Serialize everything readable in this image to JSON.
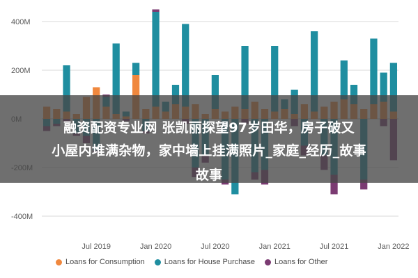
{
  "chart_data": {
    "type": "bar",
    "stacked": true,
    "y_ticks": [
      "400M",
      "200M",
      "0M",
      "-200M",
      "-400M"
    ],
    "y_tick_values": [
      400,
      200,
      0,
      -200,
      -400
    ],
    "ylim": [
      -460,
      460
    ],
    "x_ticks": [
      "Jul 2019",
      "Jan 2020",
      "Jul 2020",
      "Jan 2021",
      "Jul 2021",
      "Jan 2022"
    ],
    "x_tick_index": [
      5,
      11,
      17,
      23,
      29,
      35
    ],
    "grid": true,
    "legend_position": "bottom-left",
    "series": [
      {
        "name": "Loans for Consumption",
        "color": "#f0883e",
        "values": [
          50,
          40,
          30,
          20,
          90,
          130,
          50,
          20,
          10,
          180,
          40,
          50,
          30,
          60,
          50,
          60,
          20,
          40,
          30,
          50,
          40,
          70,
          40,
          30,
          40,
          20,
          60,
          30,
          50,
          70,
          80,
          60,
          40,
          60,
          70,
          30
        ]
      },
      {
        "name": "Loans for House Purchase",
        "color": "#1f8ea0",
        "values": [
          -30,
          -20,
          190,
          -60,
          -70,
          -130,
          40,
          290,
          20,
          50,
          -50,
          390,
          40,
          80,
          340,
          -200,
          -150,
          140,
          -250,
          -310,
          260,
          -220,
          -210,
          270,
          40,
          100,
          -110,
          330,
          -150,
          -230,
          160,
          80,
          -250,
          270,
          120,
          200
        ]
      },
      {
        "name": "Loans for Other",
        "color": "#7b3b72",
        "values": [
          -20,
          -10,
          -10,
          -10,
          -30,
          -10,
          10,
          0,
          -10,
          0,
          -10,
          10,
          0,
          0,
          -20,
          -40,
          -30,
          0,
          -20,
          0,
          -20,
          -30,
          -60,
          0,
          0,
          -30,
          -40,
          0,
          -60,
          -80,
          0,
          0,
          -40,
          0,
          -30,
          -170
        ]
      }
    ]
  },
  "overlay": {
    "line1": "融资配资专业网 张凯丽探望97岁田华，房子破又",
    "line2": "小屋内堆满杂物，家中墙上挂满照片_家庭_经历_故事",
    "line3": "故事"
  }
}
